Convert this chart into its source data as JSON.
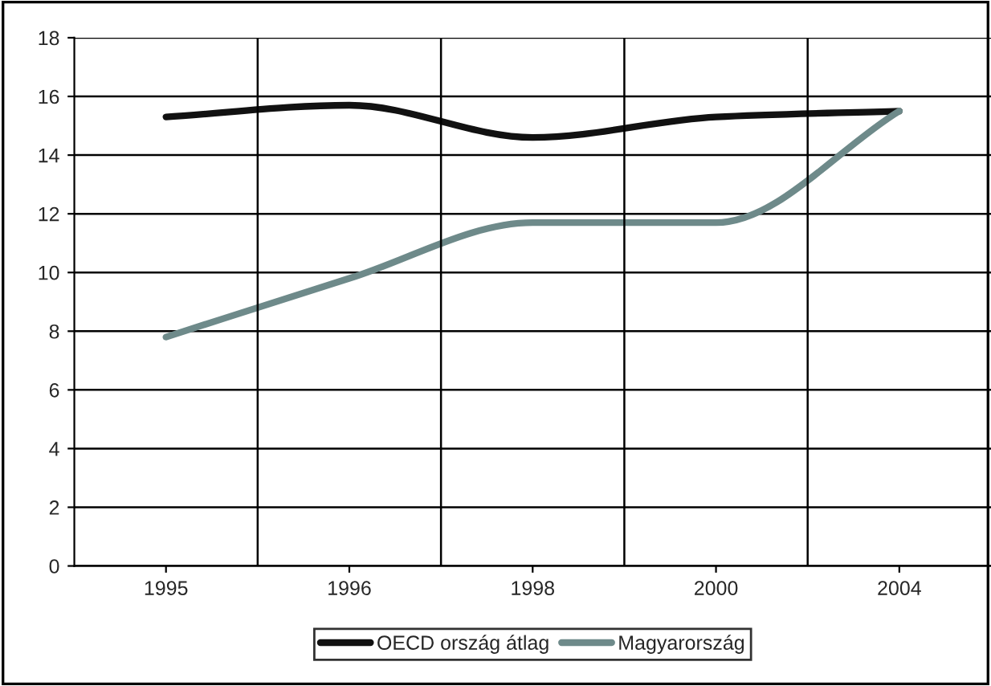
{
  "chart_data": {
    "type": "line",
    "categories": [
      "1995",
      "1996",
      "1998",
      "2000",
      "2004"
    ],
    "series": [
      {
        "name": "OECD ország átlag",
        "color": "#111111",
        "values": [
          15.3,
          15.7,
          14.6,
          15.3,
          15.5
        ]
      },
      {
        "name": "Magyarország",
        "color": "#6e8a8a",
        "values": [
          7.8,
          9.8,
          11.7,
          11.7,
          15.5
        ]
      }
    ],
    "ylim": [
      0,
      18
    ],
    "yticks": [
      0,
      2,
      4,
      6,
      8,
      10,
      12,
      14,
      16,
      18
    ],
    "grid": true,
    "legend": "bottom",
    "marker": "none",
    "line_style": "solid"
  }
}
